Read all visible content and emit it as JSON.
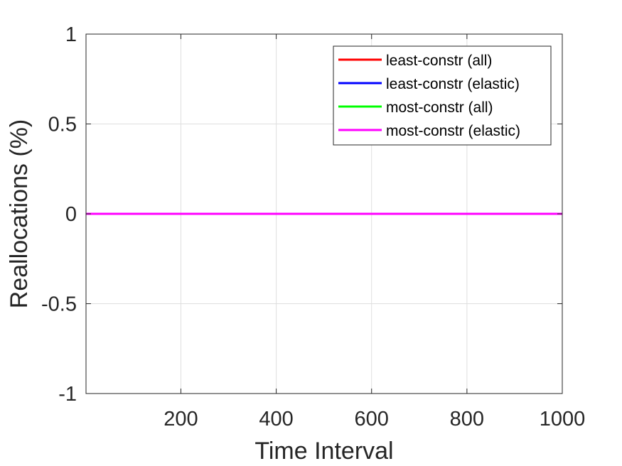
{
  "chart_data": {
    "type": "line",
    "title": "",
    "xlabel": "Time Interval",
    "ylabel": "Reallocations (%)",
    "xlim": [
      1,
      1000
    ],
    "ylim": [
      -1,
      1
    ],
    "xticks": [
      200,
      400,
      600,
      800,
      1000
    ],
    "xtick_labels": [
      "200",
      "400",
      "600",
      "800",
      "1000"
    ],
    "yticks": [
      -1,
      -0.5,
      0,
      0.5,
      1
    ],
    "ytick_labels": [
      "-1",
      "-0.5",
      "0",
      "0.5",
      "1"
    ],
    "grid": true,
    "legend_position": "top-right",
    "series": [
      {
        "name": "least-constr (all)",
        "color": "#ff0000",
        "x": [
          1,
          1000
        ],
        "y": [
          0,
          0
        ]
      },
      {
        "name": "least-constr (elastic)",
        "color": "#0000ff",
        "x": [
          1,
          1000
        ],
        "y": [
          0,
          0
        ]
      },
      {
        "name": "most-constr (all)",
        "color": "#00ff00",
        "x": [
          1,
          1000
        ],
        "y": [
          0,
          0
        ]
      },
      {
        "name": "most-constr (elastic)",
        "color": "#ff00ff",
        "x": [
          1,
          1000
        ],
        "y": [
          0,
          0
        ]
      }
    ]
  }
}
